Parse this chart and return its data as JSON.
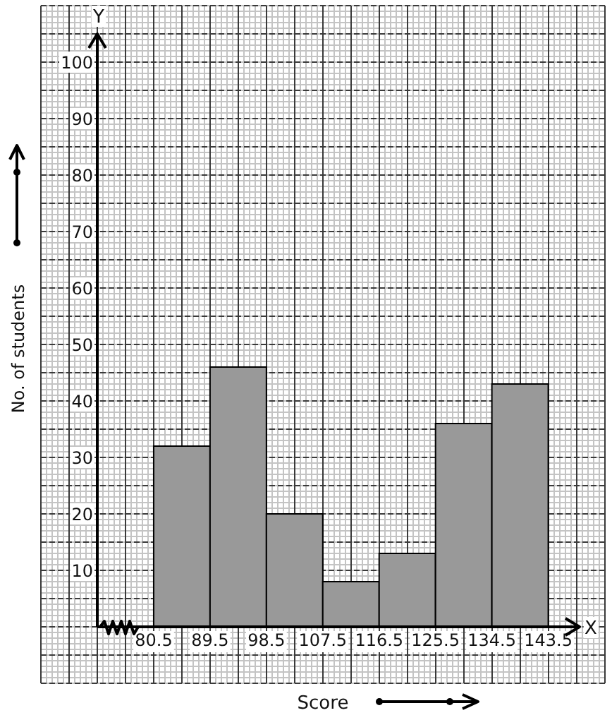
{
  "chart_data": {
    "type": "histogram",
    "xlabel": "Score",
    "ylabel": "No. of students",
    "annotations": [
      "Y",
      "X"
    ],
    "bins": [
      80.5,
      89.5,
      98.5,
      107.5,
      116.5,
      125.5,
      134.5,
      143.5
    ],
    "values": [
      32,
      46,
      20,
      8,
      13,
      36,
      43
    ],
    "color": "#999999",
    "xlim": [
      71.5,
      148.5
    ],
    "ylim": [
      0,
      105
    ],
    "xticks": [
      80.5,
      89.5,
      98.5,
      107.5,
      116.5,
      125.5,
      134.5,
      143.5
    ],
    "yticks": [
      10,
      20,
      30,
      40,
      50,
      60,
      70,
      80,
      90,
      100
    ],
    "grid": true
  }
}
